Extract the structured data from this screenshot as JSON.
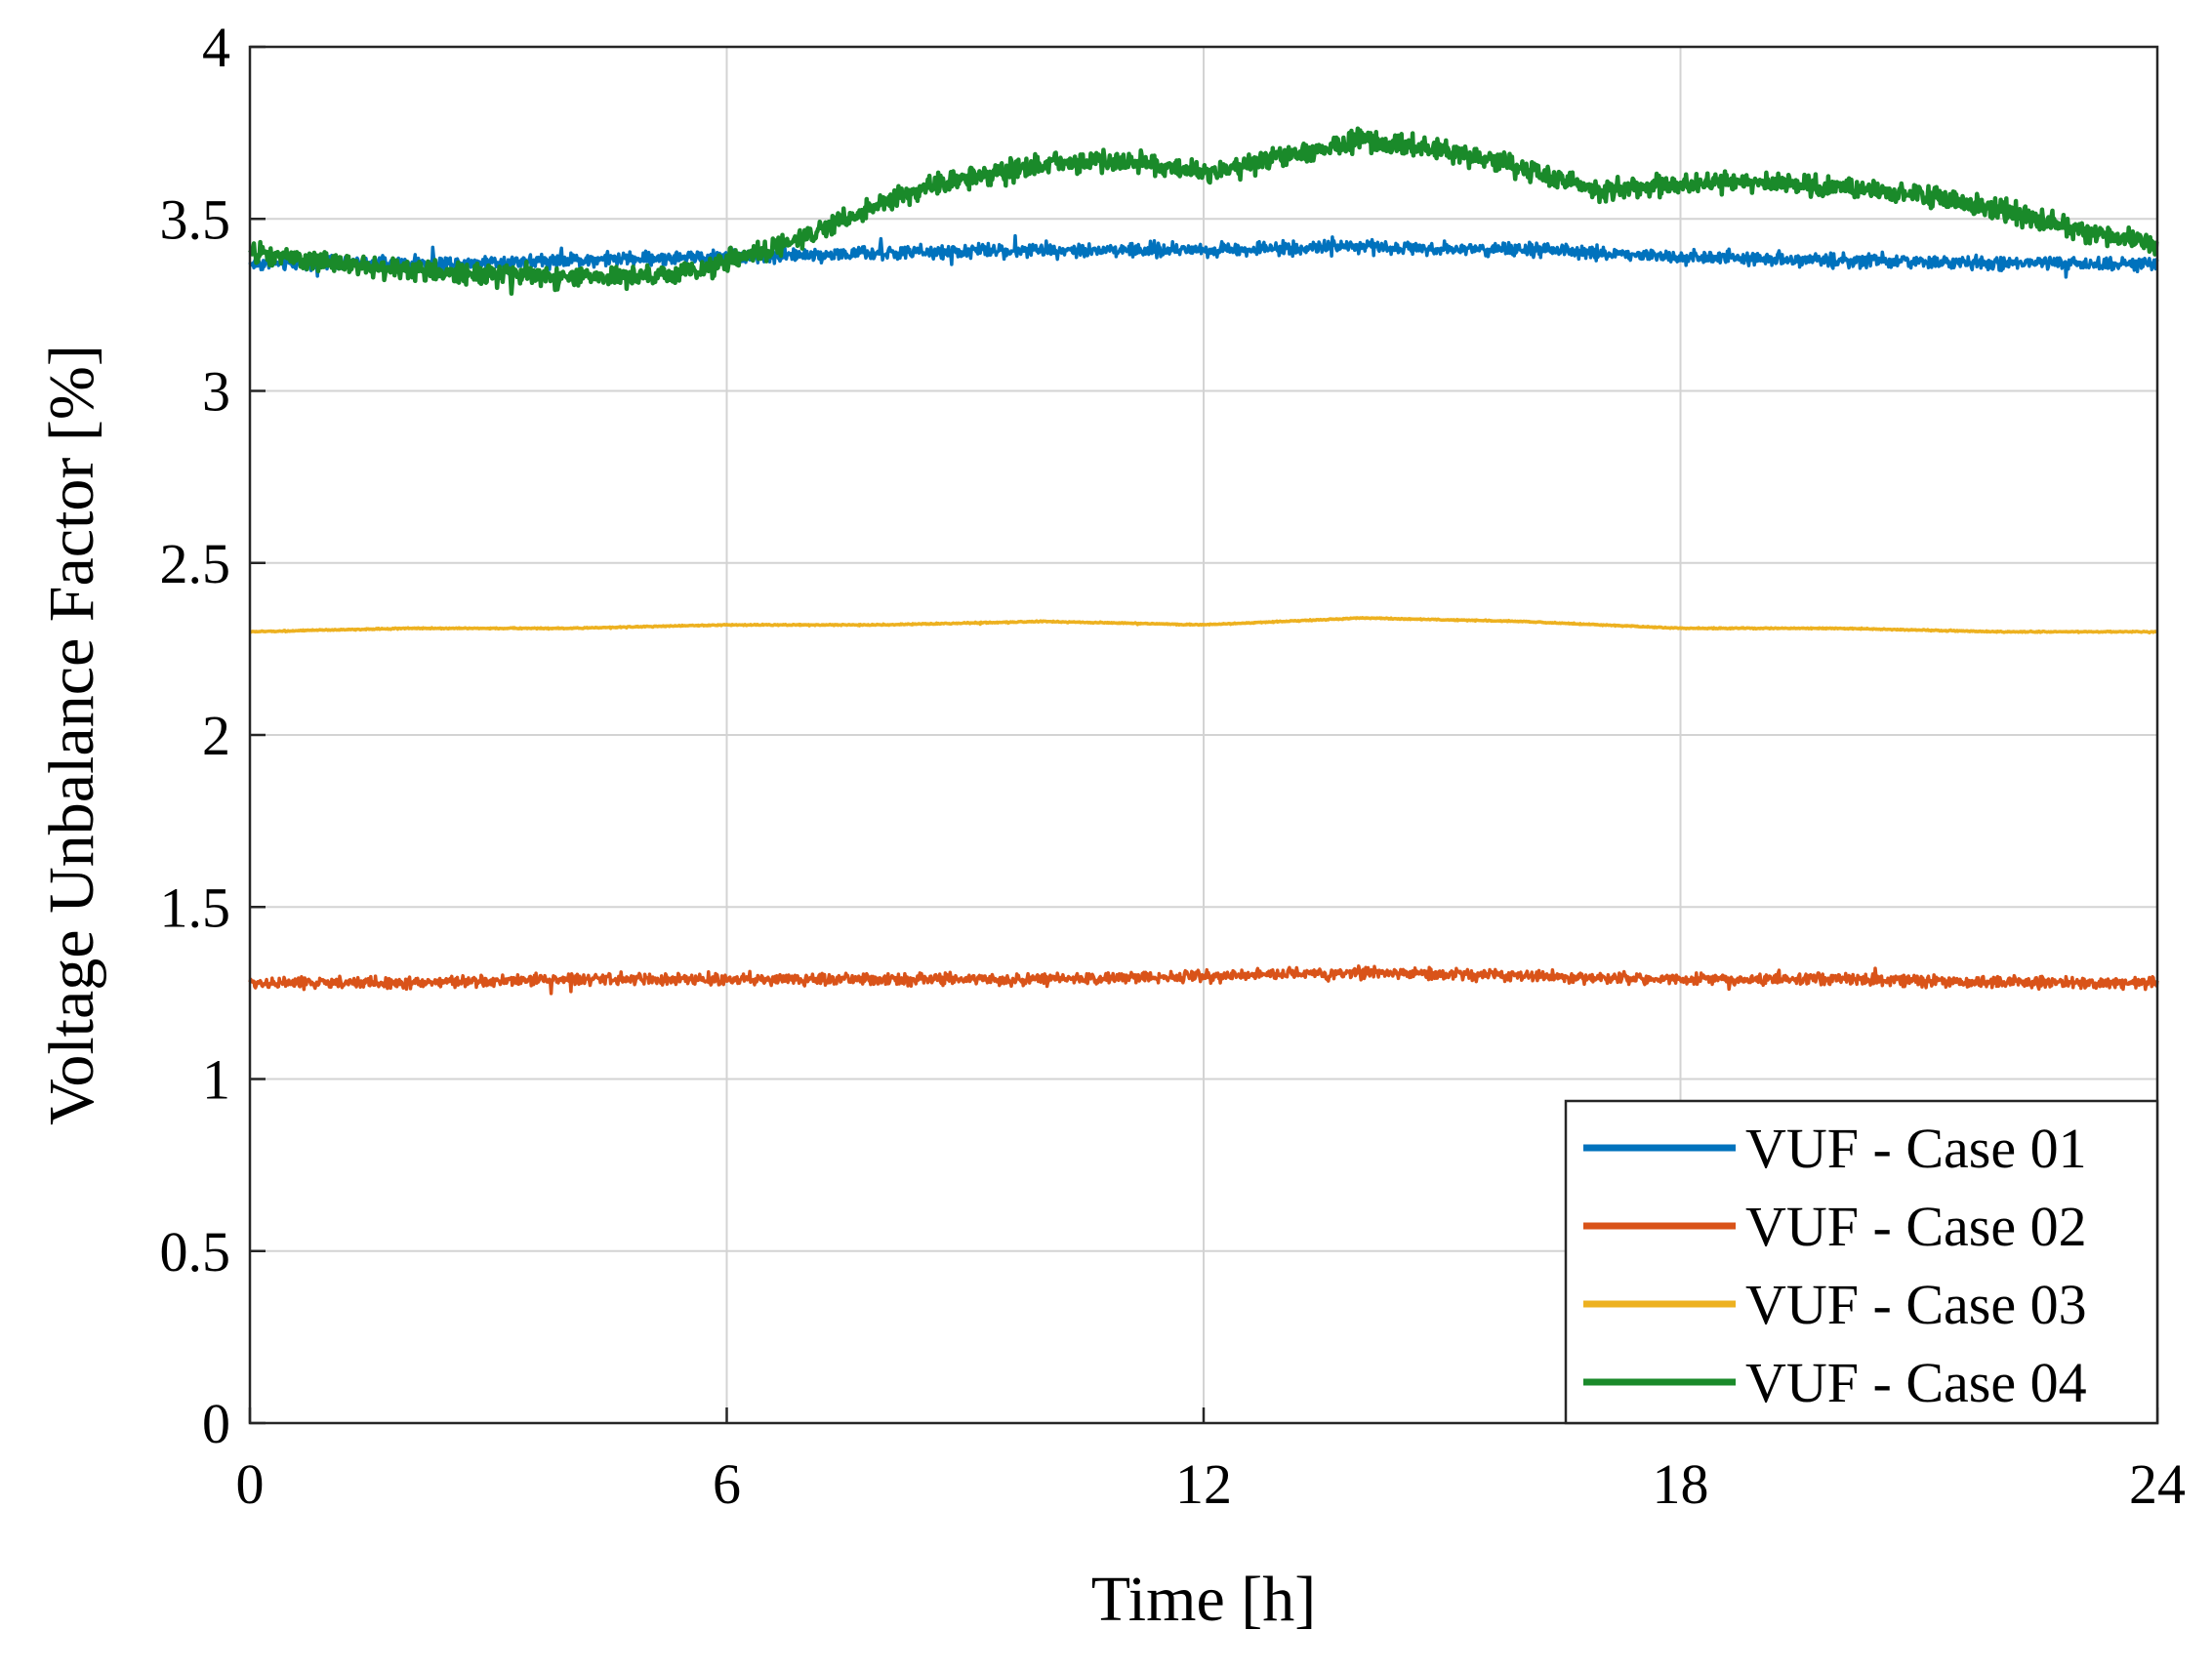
{
  "chart_data": {
    "type": "line",
    "title": "",
    "xlabel": "Time [h]",
    "ylabel": "Voltage Unbalance Factor [%]",
    "xlim": [
      0,
      24
    ],
    "ylim": [
      0,
      4
    ],
    "xticks": [
      0,
      6,
      12,
      18,
      24
    ],
    "xtick_labels": [
      "0",
      "6",
      "12",
      "18",
      "24"
    ],
    "yticks": [
      0,
      0.5,
      1,
      1.5,
      2,
      2.5,
      3,
      3.5,
      4
    ],
    "ytick_labels": [
      "0",
      "0.5",
      "1",
      "1.5",
      "2",
      "2.5",
      "3",
      "3.5",
      "4"
    ],
    "grid": true,
    "legend_position": "bottom-right",
    "series": [
      {
        "name": "VUF - Case 01",
        "color": "#0072BD",
        "noise": 0.012,
        "x": [
          0,
          2,
          4,
          6,
          8,
          10,
          12,
          14,
          16,
          18,
          20,
          22,
          24
        ],
        "values": [
          3.37,
          3.37,
          3.38,
          3.39,
          3.4,
          3.41,
          3.41,
          3.42,
          3.41,
          3.39,
          3.38,
          3.37,
          3.37
        ]
      },
      {
        "name": "VUF - Case 02",
        "color": "#D95319",
        "noise": 0.01,
        "x": [
          0,
          2,
          4,
          6,
          8,
          10,
          12,
          14,
          16,
          18,
          20,
          22,
          24
        ],
        "values": [
          1.28,
          1.28,
          1.29,
          1.29,
          1.29,
          1.29,
          1.3,
          1.31,
          1.3,
          1.29,
          1.29,
          1.28,
          1.28
        ]
      },
      {
        "name": "VUF - Case 03",
        "color": "#EDB120",
        "noise": 0.001,
        "x": [
          0,
          2,
          4,
          6,
          8,
          10,
          12,
          14,
          16,
          18,
          20,
          22,
          24
        ],
        "values": [
          2.3,
          2.31,
          2.31,
          2.32,
          2.32,
          2.33,
          2.32,
          2.34,
          2.33,
          2.31,
          2.31,
          2.3,
          2.3
        ]
      },
      {
        "name": "VUF - Case 04",
        "color": "#1A8A2A",
        "noise": 0.018,
        "x": [
          0,
          1,
          2,
          3,
          4,
          5,
          6,
          7,
          8,
          9,
          10,
          11,
          12,
          13,
          14,
          15,
          16,
          17,
          18,
          19,
          20,
          21,
          22,
          23,
          24
        ],
        "values": [
          3.4,
          3.37,
          3.35,
          3.34,
          3.33,
          3.33,
          3.37,
          3.45,
          3.55,
          3.62,
          3.66,
          3.67,
          3.63,
          3.68,
          3.73,
          3.7,
          3.65,
          3.58,
          3.6,
          3.61,
          3.59,
          3.57,
          3.53,
          3.47,
          3.42
        ]
      }
    ]
  }
}
